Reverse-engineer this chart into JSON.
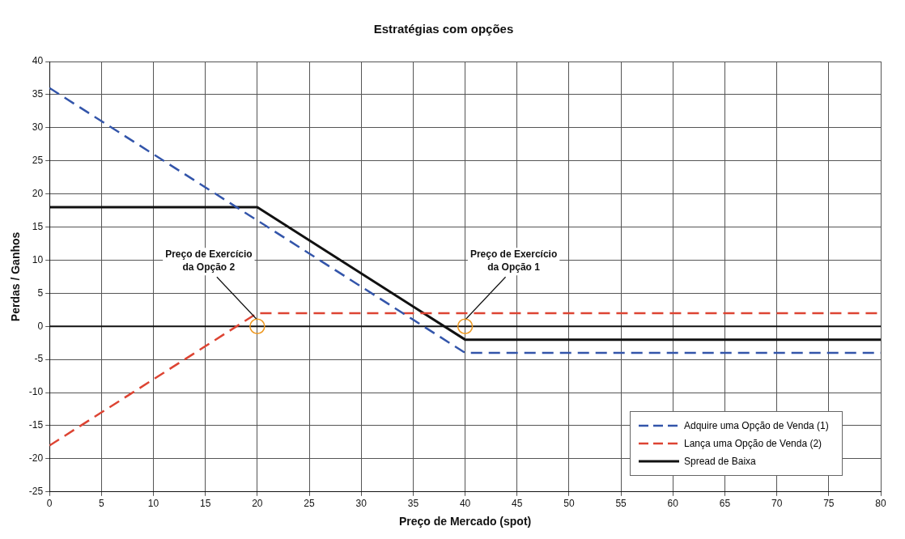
{
  "chart_data": {
    "type": "line",
    "title": "Estratégias com opções",
    "xlabel": "Preço de Mercado (spot)",
    "ylabel": "Perdas / Ganhos",
    "xlim": [
      0,
      80
    ],
    "xticks": [
      0,
      5,
      10,
      15,
      20,
      25,
      30,
      35,
      40,
      45,
      50,
      55,
      60,
      65,
      70,
      75,
      80
    ],
    "ylim": [
      -25,
      40
    ],
    "yticks": [
      -25,
      -20,
      -15,
      -10,
      -5,
      0,
      5,
      10,
      15,
      20,
      25,
      30,
      35,
      40
    ],
    "grid": true,
    "legend": "bottom right",
    "marker": "none",
    "series": [
      {
        "name": "Adquire uma Opção de Venda (1)",
        "color": "#3355aa",
        "line_style": "dashed",
        "x": [
          0,
          40,
          80
        ],
        "values": [
          36,
          -4,
          -4
        ]
      },
      {
        "name": "Lança uma Opção de Venda (2)",
        "color": "#dd4433",
        "line_style": "dashed",
        "x": [
          0,
          20,
          80
        ],
        "values": [
          -18,
          2,
          2
        ]
      },
      {
        "name": "Spread de Baixa",
        "color": "#111111",
        "line_style": "solid",
        "x": [
          0,
          20,
          40,
          80
        ],
        "values": [
          18,
          18,
          -2,
          -2
        ]
      }
    ],
    "ref_lines": [
      {
        "axis": "y",
        "value": 0,
        "color": "#111111"
      }
    ],
    "annotations": [
      {
        "text": "Preço de Exercício da Opção 2",
        "x": 20,
        "y": 0
      },
      {
        "text": "Preço de Exercício da Opção 1",
        "x": 40,
        "y": 0
      }
    ]
  }
}
